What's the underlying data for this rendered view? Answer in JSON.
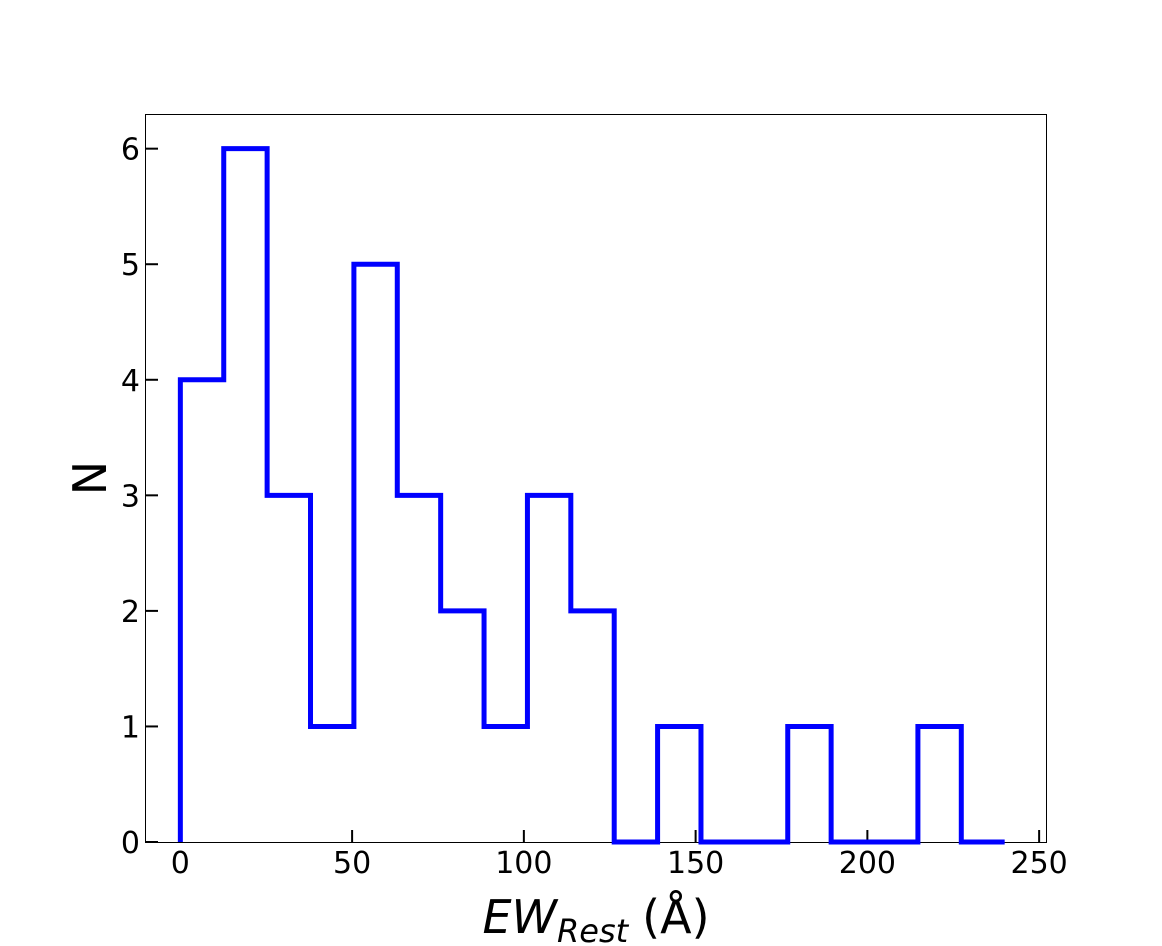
{
  "chart_data": {
    "type": "histogram",
    "title": "",
    "xlabel_main": "EW",
    "xlabel_sub": "Rest",
    "xlabel_unit": "(Å)",
    "ylabel": "N",
    "xlim": [
      -10,
      252
    ],
    "ylim": [
      0,
      6.3
    ],
    "xticks": [
      0,
      50,
      100,
      150,
      200,
      250
    ],
    "yticks": [
      0,
      1,
      2,
      3,
      4,
      5,
      6
    ],
    "bin_edges": [
      0,
      12.63,
      25.26,
      37.89,
      50.52,
      63.15,
      75.78,
      88.41,
      101.04,
      113.67,
      126.3,
      138.93,
      151.56,
      164.19,
      176.82,
      189.45,
      202.08,
      214.71,
      227.34,
      239.97
    ],
    "counts": [
      4,
      6,
      3,
      1,
      5,
      3,
      2,
      1,
      3,
      2,
      0,
      1,
      0,
      0,
      1,
      0,
      0,
      1,
      0
    ],
    "series_color": "#0000ff",
    "grid": false,
    "legend": "none"
  }
}
